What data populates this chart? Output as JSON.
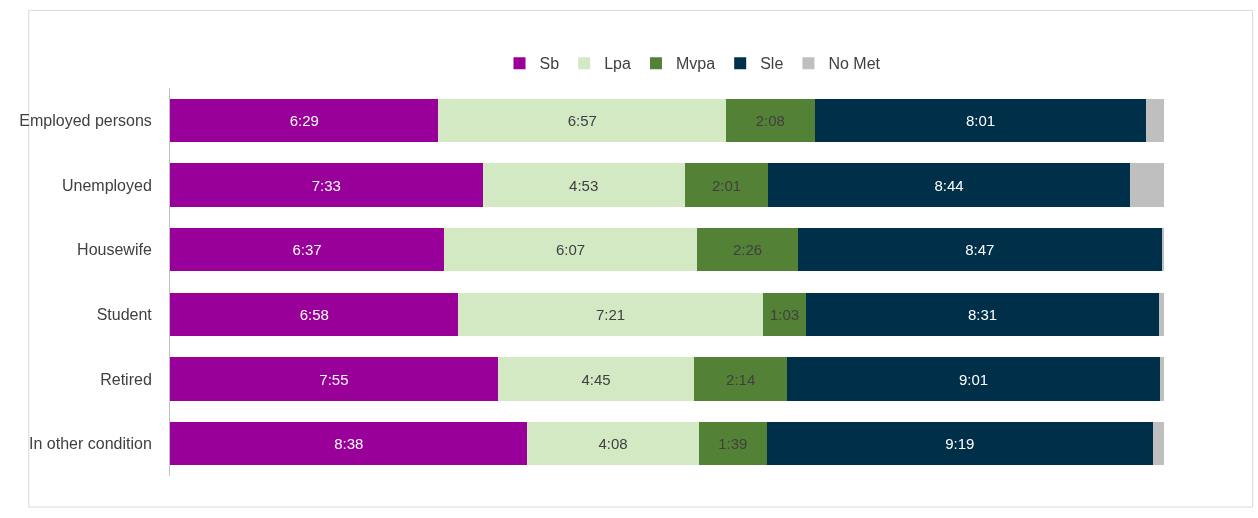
{
  "chart_data": {
    "type": "bar",
    "orientation": "horizontal",
    "stacked": true,
    "legend": "top",
    "tick_labels": "y",
    "categories": [
      "Employed persons",
      "Unemployed",
      "Housewife",
      "Student",
      "Retired",
      "In other condition"
    ],
    "series": [
      {
        "name": "Sb",
        "color": "#990099",
        "values": [
          389,
          453,
          397,
          418,
          475,
          518
        ],
        "value_labels": [
          "6:29",
          "7:33",
          "6:37",
          "6:58",
          "7:55",
          "8:38"
        ]
      },
      {
        "name": "Lpa",
        "color": "#d2e9c3",
        "values": [
          417,
          293,
          367,
          441,
          285,
          248
        ],
        "value_labels": [
          "6:57",
          "4:53",
          "6:07",
          "7:21",
          "4:45",
          "4:08"
        ]
      },
      {
        "name": "Mvpa",
        "color": "#538135",
        "values": [
          128,
          121,
          146,
          63,
          134,
          99
        ],
        "value_labels": [
          "2:08",
          "2:01",
          "2:26",
          "1:03",
          "2:14",
          "1:39"
        ]
      },
      {
        "name": "Sle",
        "color": "#003049",
        "values": [
          481,
          524,
          527,
          511,
          541,
          559
        ],
        "value_labels": [
          "8:01",
          "8:44",
          "8:47",
          "8:31",
          "9:01",
          "9:19"
        ]
      },
      {
        "name": "No Met",
        "color": "#bfbfbf",
        "values": [
          25,
          49,
          3,
          7,
          5,
          16
        ],
        "value_labels": [
          null,
          null,
          null,
          null,
          null,
          null
        ]
      }
    ]
  }
}
